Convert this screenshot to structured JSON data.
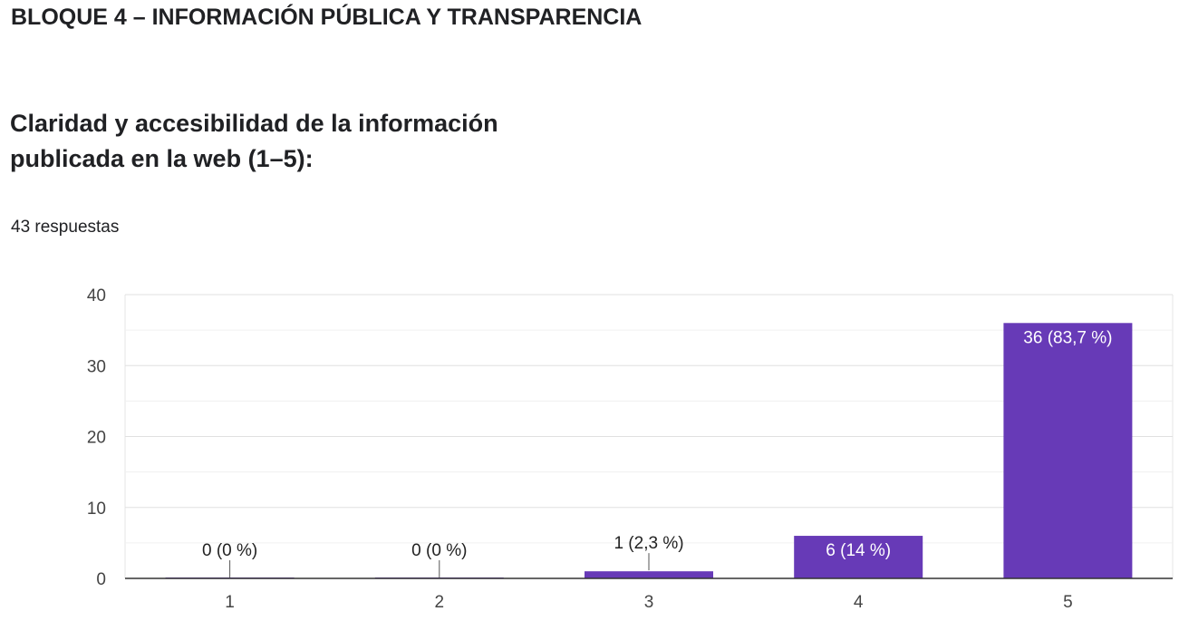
{
  "section": {
    "title": "BLOQUE 4 – INFORMACIÓN PÚBLICA Y TRANSPARENCIA"
  },
  "question": {
    "title": "Claridad y accesibilidad de la información publicada en la web (1–5):",
    "responses": "43 respuestas"
  },
  "colors": {
    "bar": "#673ab7",
    "grid": "#e6e6e6",
    "axis": "#333333",
    "label_inside": "#ffffff",
    "label_outside": "#222222"
  },
  "chart_data": {
    "type": "bar",
    "categories": [
      "1",
      "2",
      "3",
      "4",
      "5"
    ],
    "values": [
      0,
      0,
      1,
      6,
      36
    ],
    "data_labels": [
      "0 (0 %)",
      "0 (0 %)",
      "1 (2,3 %)",
      "6 (14 %)",
      "36 (83,7 %)"
    ],
    "y_ticks": [
      "0",
      "10",
      "20",
      "30",
      "40"
    ],
    "ylim": [
      0,
      40
    ],
    "grid": true,
    "xlabel": "",
    "ylabel": ""
  }
}
